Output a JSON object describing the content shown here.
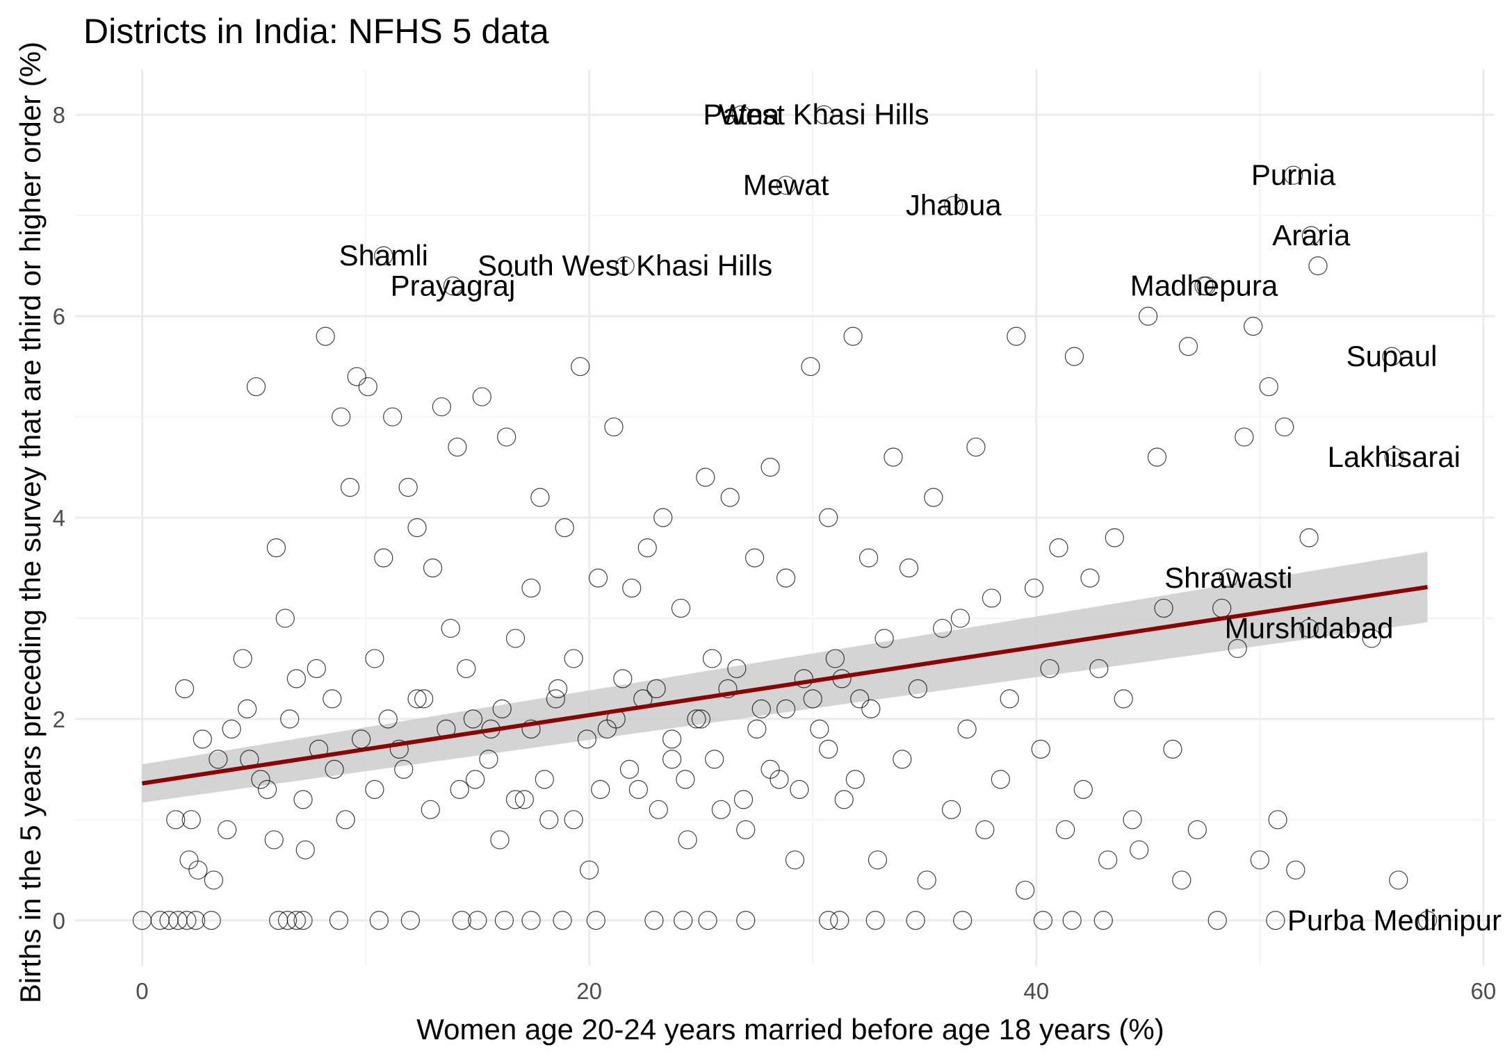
{
  "chart_data": {
    "type": "scatter",
    "title": "Districts in India: NFHS 5 data",
    "xlabel": "Women age 20-24 years married before age 18 years (%)",
    "ylabel": "Births in the 5 years preceding the survey that are third or higher order (%)",
    "xlim": [
      -3,
      60.5
    ],
    "ylim": [
      -0.45,
      8.45
    ],
    "x_ticks": [
      0,
      20,
      40,
      60
    ],
    "y_ticks": [
      0,
      2,
      4,
      6,
      8
    ],
    "x_tick_labels": [
      "0",
      "20",
      "40",
      "60"
    ],
    "y_tick_labels": [
      "0",
      "2",
      "4",
      "6",
      "8"
    ],
    "grid": true,
    "legend": "none",
    "marker": "open-circle",
    "trend": {
      "method": "linear",
      "color": "#8b0000",
      "band_color": "#cccccc",
      "x_range": [
        0,
        57.5
      ],
      "y_start": 1.36,
      "y_end": 3.31,
      "band_start": [
        1.17,
        1.55
      ],
      "band_end": [
        2.96,
        3.66
      ]
    },
    "labeled_points": [
      {
        "label": "West Khasi Hills",
        "x": 30.5,
        "y": 8.0
      },
      {
        "label": "Patna",
        "x": 26.8,
        "y": 8.0
      },
      {
        "label": "Purnia",
        "x": 51.5,
        "y": 7.4
      },
      {
        "label": "Jhabua",
        "x": 36.3,
        "y": 7.1
      },
      {
        "label": "Mewat",
        "x": 28.8,
        "y": 7.3
      },
      {
        "label": "Araria",
        "x": 52.3,
        "y": 6.8
      },
      {
        "label": "Shamli",
        "x": 10.8,
        "y": 6.6
      },
      {
        "label": "South West Khasi Hills",
        "x": 21.6,
        "y": 6.5
      },
      {
        "label": "Prayagraj",
        "x": 13.9,
        "y": 6.3
      },
      {
        "label": "Madhepura",
        "x": 47.5,
        "y": 6.3
      },
      {
        "label": "Supaul",
        "x": 55.9,
        "y": 5.6
      },
      {
        "label": "Lakhisarai",
        "x": 56.0,
        "y": 4.6
      },
      {
        "label": "Shrawasti",
        "x": 48.6,
        "y": 3.4
      },
      {
        "label": "Murshidabad",
        "x": 52.2,
        "y": 2.9
      },
      {
        "label": "Purba Medinipur",
        "x": 57.5,
        "y": 0.0
      }
    ],
    "points": [
      [
        0,
        0
      ],
      [
        0.8,
        0
      ],
      [
        1.2,
        0
      ],
      [
        1.6,
        0
      ],
      [
        2.0,
        0
      ],
      [
        2.4,
        0
      ],
      [
        3.1,
        0
      ],
      [
        6.1,
        0
      ],
      [
        6.5,
        0
      ],
      [
        6.9,
        0
      ],
      [
        7.2,
        0
      ],
      [
        8.8,
        0
      ],
      [
        10.6,
        0
      ],
      [
        12.0,
        0
      ],
      [
        14.3,
        0
      ],
      [
        15.0,
        0
      ],
      [
        16.2,
        0
      ],
      [
        17.4,
        0
      ],
      [
        18.8,
        0
      ],
      [
        20.3,
        0
      ],
      [
        22.9,
        0
      ],
      [
        24.2,
        0
      ],
      [
        25.3,
        0
      ],
      [
        27.0,
        0
      ],
      [
        30.7,
        0
      ],
      [
        31.2,
        0
      ],
      [
        32.8,
        0
      ],
      [
        34.6,
        0
      ],
      [
        36.7,
        0
      ],
      [
        40.3,
        0
      ],
      [
        41.6,
        0
      ],
      [
        43.0,
        0
      ],
      [
        48.1,
        0
      ],
      [
        50.7,
        0
      ],
      [
        1.9,
        2.3
      ],
      [
        2.2,
        1.0
      ],
      [
        2.5,
        0.5
      ],
      [
        3.2,
        0.4
      ],
      [
        3.8,
        0.9
      ],
      [
        4.5,
        2.6
      ],
      [
        4.8,
        1.6
      ],
      [
        5.1,
        5.3
      ],
      [
        5.6,
        1.3
      ],
      [
        6.0,
        3.7
      ],
      [
        6.4,
        3.0
      ],
      [
        6.9,
        2.4
      ],
      [
        7.3,
        0.7
      ],
      [
        7.8,
        2.5
      ],
      [
        8.2,
        5.8
      ],
      [
        8.6,
        1.5
      ],
      [
        8.9,
        5.0
      ],
      [
        9.3,
        4.3
      ],
      [
        9.6,
        5.4
      ],
      [
        10.1,
        5.3
      ],
      [
        10.4,
        2.6
      ],
      [
        10.8,
        3.6
      ],
      [
        11.2,
        5.0
      ],
      [
        11.5,
        1.7
      ],
      [
        11.9,
        4.3
      ],
      [
        12.3,
        3.9
      ],
      [
        12.6,
        2.2
      ],
      [
        13.0,
        3.5
      ],
      [
        13.4,
        5.1
      ],
      [
        13.8,
        2.9
      ],
      [
        14.1,
        4.7
      ],
      [
        14.5,
        2.5
      ],
      [
        14.9,
        1.4
      ],
      [
        15.2,
        5.2
      ],
      [
        15.6,
        1.9
      ],
      [
        16.0,
        0.8
      ],
      [
        16.3,
        4.8
      ],
      [
        16.7,
        2.8
      ],
      [
        17.1,
        1.2
      ],
      [
        17.4,
        3.3
      ],
      [
        17.8,
        4.2
      ],
      [
        18.2,
        1.0
      ],
      [
        18.5,
        2.2
      ],
      [
        18.9,
        3.9
      ],
      [
        19.3,
        2.6
      ],
      [
        19.6,
        5.5
      ],
      [
        20.0,
        0.5
      ],
      [
        20.4,
        3.4
      ],
      [
        20.8,
        1.9
      ],
      [
        21.1,
        4.9
      ],
      [
        21.5,
        2.4
      ],
      [
        21.9,
        3.3
      ],
      [
        22.2,
        1.3
      ],
      [
        22.6,
        3.7
      ],
      [
        23.0,
        2.3
      ],
      [
        23.3,
        4.0
      ],
      [
        23.7,
        1.6
      ],
      [
        24.1,
        3.1
      ],
      [
        24.4,
        0.8
      ],
      [
        24.8,
        2.0
      ],
      [
        25.2,
        4.4
      ],
      [
        25.5,
        2.6
      ],
      [
        25.9,
        1.1
      ],
      [
        26.3,
        4.2
      ],
      [
        26.6,
        2.5
      ],
      [
        27.0,
        0.9
      ],
      [
        27.4,
        3.6
      ],
      [
        27.7,
        2.1
      ],
      [
        28.1,
        4.5
      ],
      [
        28.5,
        1.4
      ],
      [
        28.8,
        3.4
      ],
      [
        29.2,
        0.6
      ],
      [
        29.6,
        2.4
      ],
      [
        29.9,
        5.5
      ],
      [
        30.3,
        1.9
      ],
      [
        30.7,
        4.0
      ],
      [
        31.0,
        2.6
      ],
      [
        31.4,
        1.2
      ],
      [
        31.8,
        5.8
      ],
      [
        32.1,
        2.2
      ],
      [
        32.5,
        3.6
      ],
      [
        32.9,
        0.6
      ],
      [
        33.2,
        2.8
      ],
      [
        33.6,
        4.6
      ],
      [
        34.0,
        1.6
      ],
      [
        34.3,
        3.5
      ],
      [
        34.7,
        2.3
      ],
      [
        35.1,
        0.4
      ],
      [
        35.4,
        4.2
      ],
      [
        35.8,
        2.9
      ],
      [
        36.2,
        1.1
      ],
      [
        36.6,
        3.0
      ],
      [
        36.9,
        1.9
      ],
      [
        37.3,
        4.7
      ],
      [
        37.7,
        0.9
      ],
      [
        38.0,
        3.2
      ],
      [
        38.4,
        1.4
      ],
      [
        38.8,
        2.2
      ],
      [
        39.1,
        5.8
      ],
      [
        39.5,
        0.3
      ],
      [
        39.9,
        3.3
      ],
      [
        40.2,
        1.7
      ],
      [
        40.6,
        2.5
      ],
      [
        41.0,
        3.7
      ],
      [
        41.3,
        0.9
      ],
      [
        41.7,
        5.6
      ],
      [
        42.1,
        1.3
      ],
      [
        42.4,
        3.4
      ],
      [
        42.8,
        2.5
      ],
      [
        43.2,
        0.6
      ],
      [
        43.5,
        3.8
      ],
      [
        43.9,
        2.2
      ],
      [
        44.3,
        1.0
      ],
      [
        44.6,
        0.7
      ],
      [
        45.0,
        6.0
      ],
      [
        45.4,
        4.6
      ],
      [
        45.7,
        3.1
      ],
      [
        46.1,
        1.7
      ],
      [
        46.5,
        0.4
      ],
      [
        46.8,
        5.7
      ],
      [
        47.2,
        0.9
      ],
      [
        47.6,
        6.3
      ],
      [
        48.3,
        3.1
      ],
      [
        49.0,
        2.7
      ],
      [
        49.3,
        4.8
      ],
      [
        49.7,
        5.9
      ],
      [
        50.0,
        0.6
      ],
      [
        50.4,
        5.3
      ],
      [
        50.8,
        1.0
      ],
      [
        51.1,
        4.9
      ],
      [
        51.6,
        0.5
      ],
      [
        52.2,
        3.8
      ],
      [
        52.6,
        6.5
      ],
      [
        55.0,
        2.8
      ],
      [
        56.2,
        0.4
      ],
      [
        1.5,
        1.0
      ],
      [
        2.1,
        0.6
      ],
      [
        2.7,
        1.8
      ],
      [
        3.4,
        1.6
      ],
      [
        4.0,
        1.9
      ],
      [
        4.7,
        2.1
      ],
      [
        5.3,
        1.4
      ],
      [
        5.9,
        0.8
      ],
      [
        6.6,
        2.0
      ],
      [
        7.2,
        1.2
      ],
      [
        7.9,
        1.7
      ],
      [
        8.5,
        2.2
      ],
      [
        9.1,
        1.0
      ],
      [
        9.8,
        1.8
      ],
      [
        10.4,
        1.3
      ],
      [
        11.0,
        2.0
      ],
      [
        11.7,
        1.5
      ],
      [
        12.3,
        2.2
      ],
      [
        12.9,
        1.1
      ],
      [
        13.6,
        1.9
      ],
      [
        14.2,
        1.3
      ],
      [
        14.8,
        2.0
      ],
      [
        15.5,
        1.6
      ],
      [
        16.1,
        2.1
      ],
      [
        16.7,
        1.2
      ],
      [
        17.4,
        1.9
      ],
      [
        18.0,
        1.4
      ],
      [
        18.6,
        2.3
      ],
      [
        19.3,
        1.0
      ],
      [
        19.9,
        1.8
      ],
      [
        20.5,
        1.3
      ],
      [
        21.2,
        2.0
      ],
      [
        21.8,
        1.5
      ],
      [
        22.4,
        2.2
      ],
      [
        23.1,
        1.1
      ],
      [
        23.7,
        1.8
      ],
      [
        24.3,
        1.4
      ],
      [
        25.0,
        2.0
      ],
      [
        25.6,
        1.6
      ],
      [
        26.2,
        2.3
      ],
      [
        26.9,
        1.2
      ],
      [
        27.5,
        1.9
      ],
      [
        28.1,
        1.5
      ],
      [
        28.8,
        2.1
      ],
      [
        29.4,
        1.3
      ],
      [
        30.0,
        2.2
      ],
      [
        30.7,
        1.7
      ],
      [
        31.3,
        2.4
      ],
      [
        31.9,
        1.4
      ],
      [
        32.6,
        2.1
      ]
    ]
  }
}
